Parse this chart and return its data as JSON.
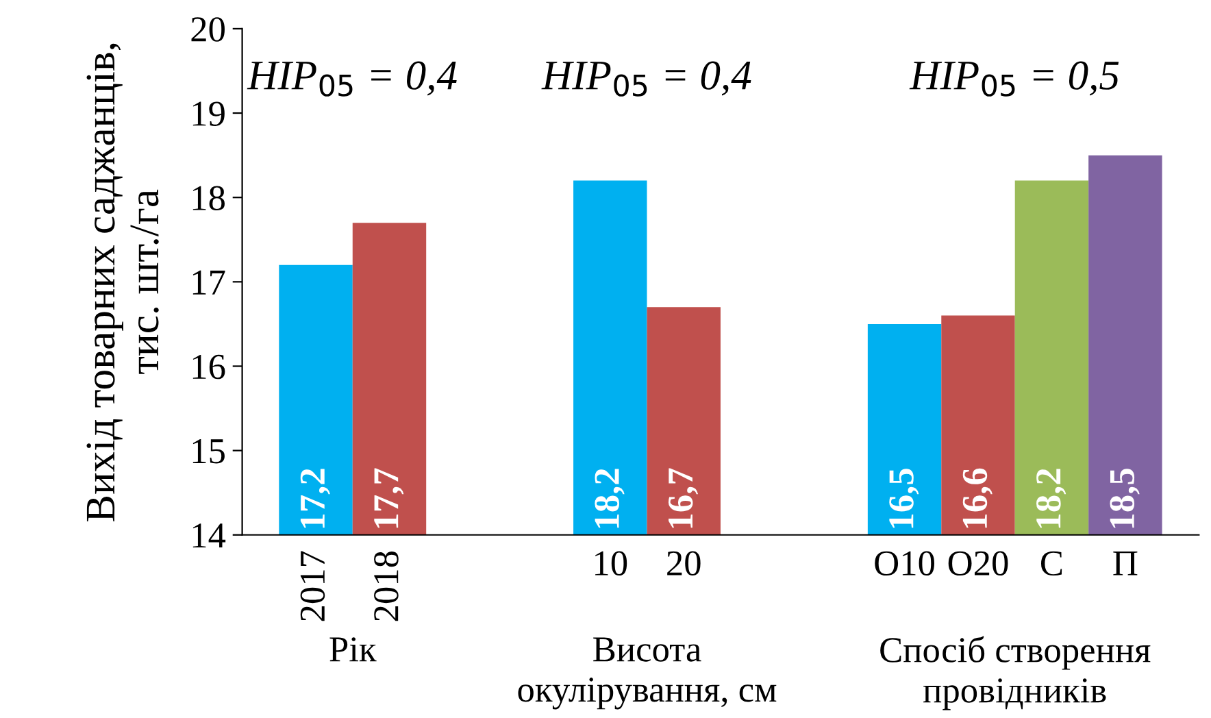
{
  "chart_data": {
    "type": "bar",
    "ylabel": "Вихід товарних саджанців,\nтис. шт./га",
    "categories": [
      "2017",
      "2018",
      null,
      null,
      "10",
      "20",
      null,
      null,
      "O10",
      "O20",
      "С",
      "П"
    ],
    "values": [
      17.2,
      17.7,
      null,
      null,
      18.2,
      16.7,
      null,
      null,
      16.5,
      16.6,
      18.2,
      18.5
    ],
    "colors": [
      "#00b0f0",
      "#c0504d",
      "#00b0f0",
      "#00b0f0",
      "#00b0f0",
      "#c0504d",
      "#00b0f0",
      "#00b0f0",
      "#00b0f0",
      "#c0504d",
      "#9bbb59",
      "#8064a2"
    ],
    "value_labels": [
      "17,2",
      "17,7",
      null,
      null,
      "18,2",
      "16,7",
      null,
      null,
      "16,5",
      "16,6",
      "18,2",
      "18,5"
    ],
    "annotations": [
      "HIP$_{05}$ = 0,4",
      "HIP$_{05}$ = 0,4",
      "HIP$_{05}$ = 0,5",
      "Рік",
      "Висота\nокулірування, см",
      "Спосіб створення\nпровідників"
    ],
    "ylim": [
      14,
      20
    ],
    "yticks": [
      14,
      15,
      16,
      17,
      18,
      19,
      20
    ],
    "grid": false
  }
}
